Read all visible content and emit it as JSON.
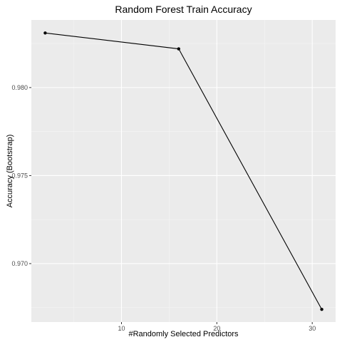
{
  "chart_data": {
    "type": "line",
    "title": "Random Forest Train Accuracy",
    "xlabel": "#Randomly Selected Predictors",
    "ylabel": "Accuracy (Bootstrap)",
    "x": [
      2,
      16,
      31
    ],
    "series": [
      {
        "values": [
          0.9831,
          0.9822,
          0.9674
        ]
      }
    ],
    "xlim": [
      0.55,
      32.45
    ],
    "ylim": [
      0.96668,
      0.98384
    ],
    "xticks": [
      10,
      20,
      30
    ],
    "xtick_labels": [
      "10",
      "20",
      "30"
    ],
    "yticks": [
      0.97,
      0.975,
      0.98
    ],
    "ytick_labels": [
      "0.970",
      "0.975",
      "0.980"
    ],
    "grid": true,
    "legend": "none",
    "colors": {
      "panel_background": "#EBEBEB",
      "grid_major": "#FFFFFF",
      "grid_minor": "#F5F5F5",
      "line": "#000000",
      "point": "#000000",
      "tick_text": "#4D4D4D"
    }
  }
}
